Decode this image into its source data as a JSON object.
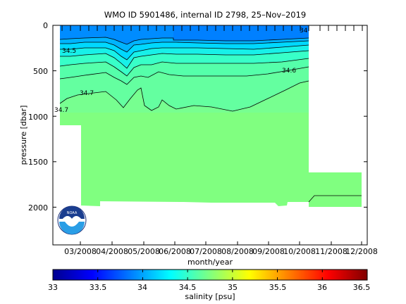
{
  "chart_data": {
    "type": "heatmap",
    "title": "WMO ID 5901486, internal ID 2798, 25–Nov–2019",
    "xlabel": "month/year",
    "ylabel": "pressure [dbar]",
    "x_ticks": [
      "03/2008",
      "04/2008",
      "05/2008",
      "06/2008",
      "07/2008",
      "08/2008",
      "09/2008",
      "10/2008",
      "11/2008",
      "12/2008"
    ],
    "y_ticks": [
      0,
      500,
      1000,
      1500,
      2000
    ],
    "ylim": [
      0,
      2400
    ],
    "y_reversed": true,
    "colorbar": {
      "label": "salinity [psu]",
      "ticks": [
        33,
        33.5,
        34,
        34.5,
        35,
        35.5,
        36,
        36.5
      ],
      "range": [
        33,
        36.5
      ],
      "colormap": "jet"
    },
    "contour_levels": [
      34,
      34.1,
      34.2,
      34.3,
      34.4,
      34.5,
      34.6,
      34.7
    ],
    "contour_labels": [
      "34",
      "34.5",
      "34.6",
      "34.7",
      "34.7"
    ],
    "profile_depth_dbar": [
      {
        "date": "2008-02-01",
        "max_pressure": 1100
      },
      {
        "date": "2008-02-20",
        "max_pressure": 1980
      },
      {
        "date": "2008-03-10",
        "max_pressure": 1940
      },
      {
        "date": "2008-04-01",
        "max_pressure": 1940
      },
      {
        "date": "2008-05-01",
        "max_pressure": 1945
      },
      {
        "date": "2008-06-01",
        "max_pressure": 1950
      },
      {
        "date": "2008-07-01",
        "max_pressure": 1950
      },
      {
        "date": "2008-08-01",
        "max_pressure": 1950
      },
      {
        "date": "2008-09-01",
        "max_pressure": 1960
      },
      {
        "date": "2008-10-05",
        "max_pressure": 1960
      },
      {
        "date": "2008-10-15",
        "max_pressure": 1640
      }
    ],
    "grid": false,
    "legend": "none",
    "logo": "noaa"
  }
}
